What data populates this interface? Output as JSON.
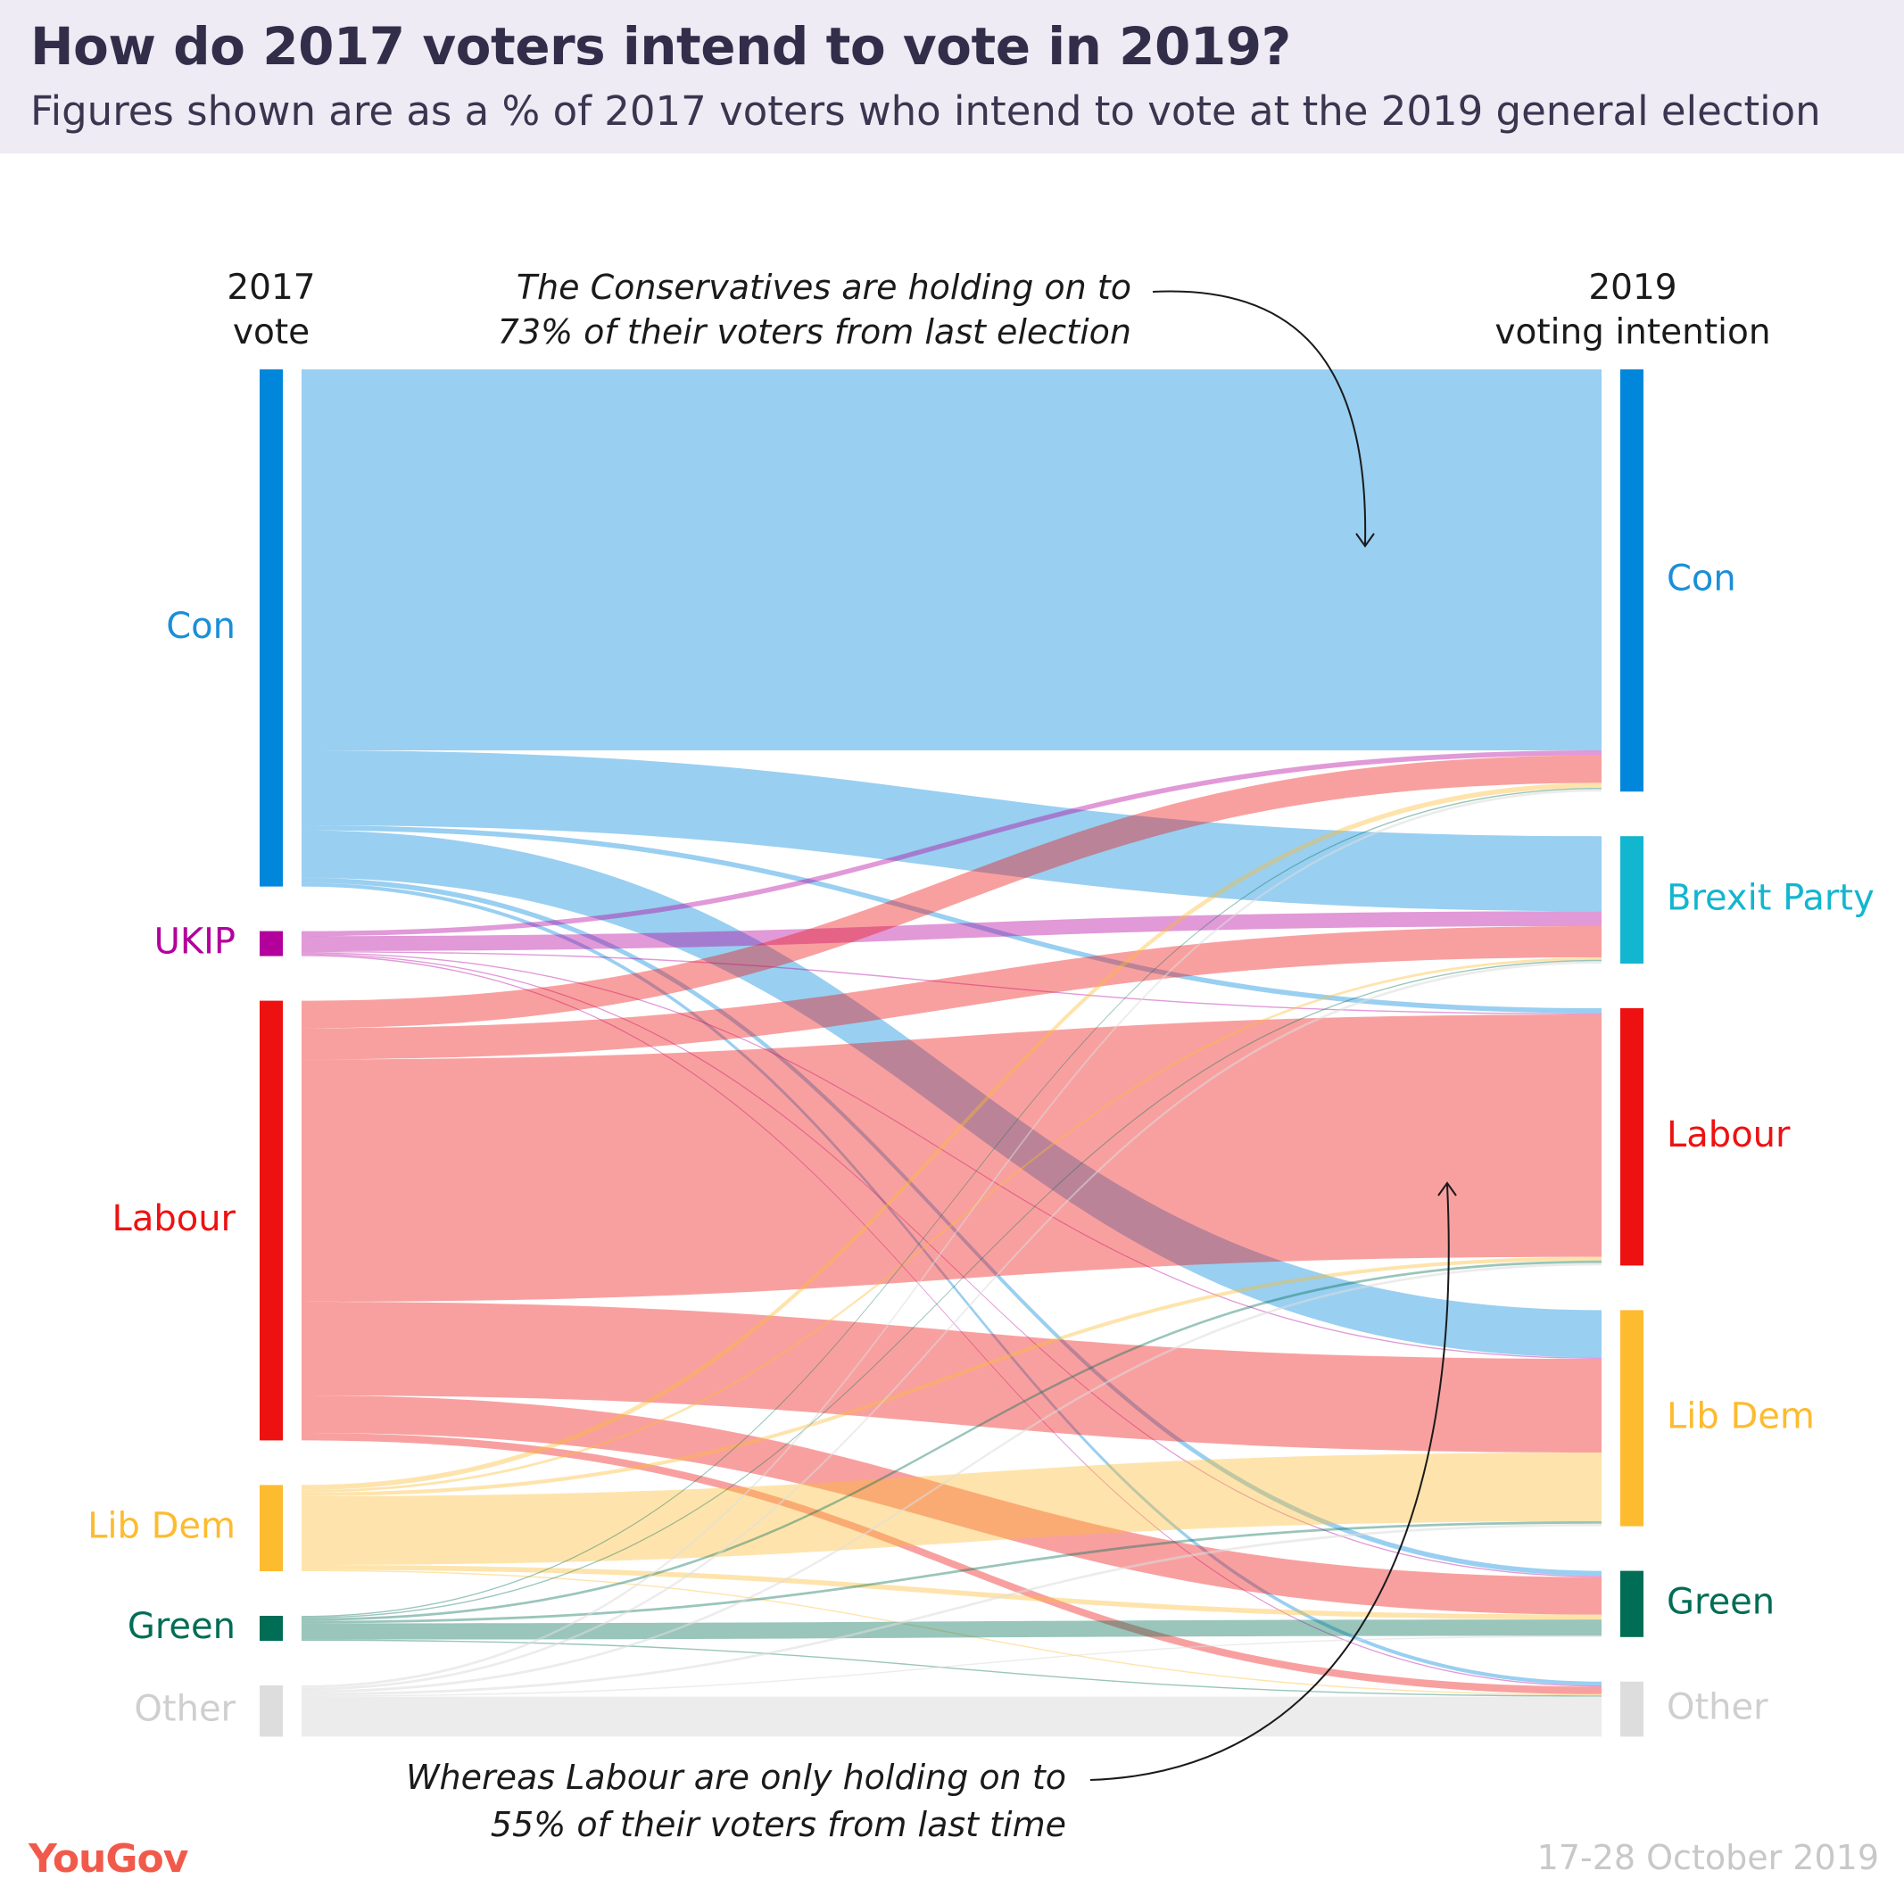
{
  "title": "How do 2017 voters intend to vote in 2019?",
  "subtitle": "Figures shown are as a % of 2017 voters who intend to vote at the 2019 general election",
  "left_header": {
    "line1": "2017",
    "line2": "vote"
  },
  "right_header": {
    "line1": "2019",
    "line2": "voting intention"
  },
  "annotation_top": {
    "line1": "The Conservatives are holding on to",
    "line2": "73% of their voters from last election"
  },
  "annotation_bottom": {
    "line1": "Whereas Labour are only holding on to",
    "line2": "55% of their voters from last time"
  },
  "source": {
    "logo": "YouGov",
    "date": "17-28 October 2019"
  },
  "chart_data": {
    "type": "sankey",
    "title": "How do 2017 voters intend to vote in 2019?",
    "unit": "% of 2017 voters who intend to vote in 2019",
    "colors": {
      "Con": "#0087dc",
      "UKIP": "#b3009d",
      "Labour": "#ee1111",
      "Lib Dem": "#fdbb30",
      "Green": "#006d55",
      "Other": "#dddddd",
      "Brexit Party": "#12b6cf"
    },
    "sources": [
      {
        "name": "Con",
        "label_color": "#1a8fd8"
      },
      {
        "name": "UKIP",
        "label_color": "#b3009d"
      },
      {
        "name": "Labour",
        "label_color": "#ee1111"
      },
      {
        "name": "Lib Dem",
        "label_color": "#fdbb30"
      },
      {
        "name": "Green",
        "label_color": "#006d55"
      },
      {
        "name": "Other",
        "label_color": "#cfcfcf"
      }
    ],
    "targets": [
      {
        "name": "Con",
        "label_color": "#1a8fd8"
      },
      {
        "name": "Brexit Party",
        "label_color": "#12b6cf"
      },
      {
        "name": "Labour",
        "label_color": "#ee1111"
      },
      {
        "name": "Lib Dem",
        "label_color": "#fdbb30"
      },
      {
        "name": "Green",
        "label_color": "#006d55"
      },
      {
        "name": "Other",
        "label_color": "#cfcfcf"
      }
    ],
    "flows": [
      {
        "from": "Con",
        "to": "Con",
        "value": 30.5
      },
      {
        "from": "Con",
        "to": "Brexit Party",
        "value": 6.0
      },
      {
        "from": "Con",
        "to": "Labour",
        "value": 0.4
      },
      {
        "from": "Con",
        "to": "Lib Dem",
        "value": 3.8
      },
      {
        "from": "Con",
        "to": "Green",
        "value": 0.4
      },
      {
        "from": "Con",
        "to": "Other",
        "value": 0.3
      },
      {
        "from": "UKIP",
        "to": "Con",
        "value": 0.4
      },
      {
        "from": "UKIP",
        "to": "Brexit Party",
        "value": 1.2
      },
      {
        "from": "UKIP",
        "to": "Labour",
        "value": 0.1
      },
      {
        "from": "UKIP",
        "to": "Lib Dem",
        "value": 0.1
      },
      {
        "from": "UKIP",
        "to": "Green",
        "value": 0.1
      },
      {
        "from": "UKIP",
        "to": "Other",
        "value": 0.1
      },
      {
        "from": "Labour",
        "to": "Con",
        "value": 2.2
      },
      {
        "from": "Labour",
        "to": "Brexit Party",
        "value": 2.5
      },
      {
        "from": "Labour",
        "to": "Labour",
        "value": 19.4
      },
      {
        "from": "Labour",
        "to": "Lib Dem",
        "value": 7.5
      },
      {
        "from": "Labour",
        "to": "Green",
        "value": 3.0
      },
      {
        "from": "Labour",
        "to": "Other",
        "value": 0.6
      },
      {
        "from": "Lib Dem",
        "to": "Con",
        "value": 0.4
      },
      {
        "from": "Lib Dem",
        "to": "Brexit Party",
        "value": 0.2
      },
      {
        "from": "Lib Dem",
        "to": "Labour",
        "value": 0.3
      },
      {
        "from": "Lib Dem",
        "to": "Lib Dem",
        "value": 5.5
      },
      {
        "from": "Lib Dem",
        "to": "Green",
        "value": 0.4
      },
      {
        "from": "Lib Dem",
        "to": "Other",
        "value": 0.1
      },
      {
        "from": "Green",
        "to": "Con",
        "value": 0.1
      },
      {
        "from": "Green",
        "to": "Brexit Party",
        "value": 0.1
      },
      {
        "from": "Green",
        "to": "Labour",
        "value": 0.2
      },
      {
        "from": "Green",
        "to": "Lib Dem",
        "value": 0.2
      },
      {
        "from": "Green",
        "to": "Green",
        "value": 1.3
      },
      {
        "from": "Green",
        "to": "Other",
        "value": 0.1
      },
      {
        "from": "Other",
        "to": "Con",
        "value": 0.2
      },
      {
        "from": "Other",
        "to": "Brexit Party",
        "value": 0.2
      },
      {
        "from": "Other",
        "to": "Labour",
        "value": 0.2
      },
      {
        "from": "Other",
        "to": "Lib Dem",
        "value": 0.2
      },
      {
        "from": "Other",
        "to": "Green",
        "value": 0.1
      },
      {
        "from": "Other",
        "to": "Other",
        "value": 3.2
      }
    ]
  }
}
